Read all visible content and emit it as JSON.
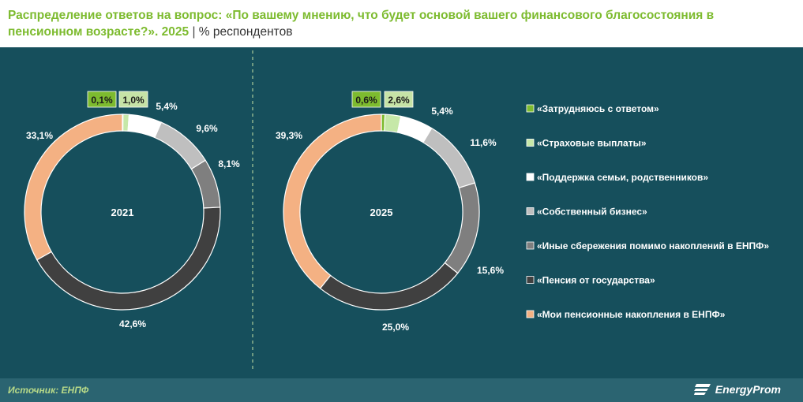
{
  "header": {
    "title": "Распределение ответов на вопрос: «По вашему мнению, что будет основой вашего финансового благосостояния в пенсионном возрасте?». 2025",
    "separator": "|",
    "unit": "% респондентов"
  },
  "footer": {
    "source": "Источник: ЕНПФ",
    "logo_text": "EnergyProm"
  },
  "colors": {
    "background": "#164f5c",
    "header_bg": "#ffffff",
    "title": "#7dbb2f",
    "footer_bg": "#2b6471",
    "label_box_dark": "#7dbb2f",
    "label_box_light": "#c6e3a6"
  },
  "chart_data": [
    {
      "type": "pie",
      "center_label": "2021",
      "categories": [
        "«Затрудняюсь с ответом»",
        "«Страховые выплаты»",
        "«Поддержка семьи, родственников»",
        "«Собственный бизнес»",
        "«Иные сбережения помимо накоплений в ЕНПФ»",
        "«Пенсия от государства»",
        "«Мои пенсионные накопления в ЕНПФ»"
      ],
      "values": [
        0.1,
        1.0,
        5.4,
        9.6,
        8.1,
        42.6,
        33.1
      ],
      "labels": [
        "0,1%",
        "1,0%",
        "5,4%",
        "9,6%",
        "8,1%",
        "42,6%",
        "33,1%"
      ],
      "colors": [
        "#7dbb2f",
        "#c6e8a8",
        "#ffffff",
        "#bfbfbf",
        "#7f7f7f",
        "#404040",
        "#f4b183"
      ]
    },
    {
      "type": "pie",
      "center_label": "2025",
      "categories": [
        "«Затрудняюсь с ответом»",
        "«Страховые выплаты»",
        "«Поддержка семьи, родственников»",
        "«Собственный бизнес»",
        "«Иные сбережения помимо накоплений в ЕНПФ»",
        "«Пенсия от государства»",
        "«Мои пенсионные накопления в ЕНПФ»"
      ],
      "values": [
        0.6,
        2.6,
        5.4,
        11.6,
        15.6,
        25.0,
        39.3
      ],
      "labels": [
        "0,6%",
        "2,6%",
        "5,4%",
        "11,6%",
        "15,6%",
        "25,0%",
        "39,3%"
      ],
      "colors": [
        "#7dbb2f",
        "#c6e8a8",
        "#ffffff",
        "#bfbfbf",
        "#7f7f7f",
        "#404040",
        "#f4b183"
      ]
    }
  ],
  "legend": {
    "placement": "right",
    "items": [
      {
        "label": "«Затрудняюсь с ответом»",
        "color": "#7dbb2f"
      },
      {
        "label": "«Страховые выплаты»",
        "color": "#c6e8a8"
      },
      {
        "label": "«Поддержка семьи, родственников»",
        "color": "#ffffff"
      },
      {
        "label": "«Собственный бизнес»",
        "color": "#bfbfbf"
      },
      {
        "label": "«Иные сбережения помимо накоплений в ЕНПФ»",
        "color": "#7f7f7f"
      },
      {
        "label": "«Пенсия от государства»",
        "color": "#404040"
      },
      {
        "label": "«Мои пенсионные накопления в ЕНПФ»",
        "color": "#f4b183"
      }
    ]
  }
}
